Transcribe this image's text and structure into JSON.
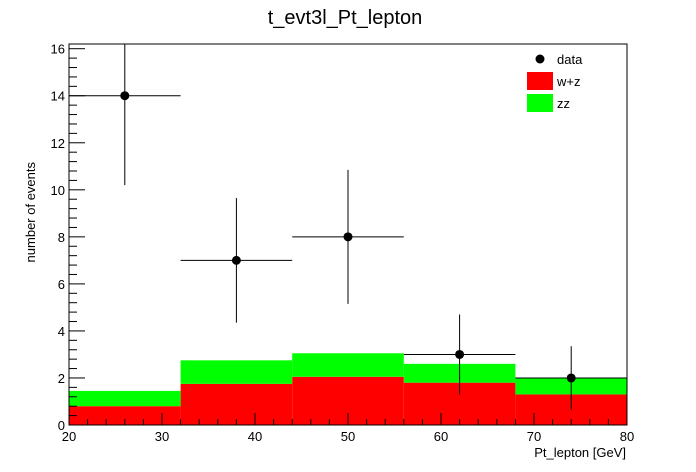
{
  "chart_data": {
    "type": "bar",
    "title": "t_evt3l_Pt_lepton",
    "xlabel": "Pt_lepton [GeV]",
    "ylabel": "number of events",
    "xlim": [
      20,
      80
    ],
    "ylim": [
      0,
      16.2
    ],
    "stacked": true,
    "bin_edges": [
      20,
      32,
      44,
      56,
      68,
      80
    ],
    "series": [
      {
        "name": "w+z",
        "color": "#ff0000",
        "values": [
          0.8,
          1.75,
          2.05,
          1.8,
          1.3
        ]
      },
      {
        "name": "zz",
        "color": "#00ff00",
        "values": [
          0.65,
          1.0,
          1.0,
          0.8,
          0.7
        ]
      }
    ],
    "data_points": {
      "name": "data",
      "color": "#000000",
      "x": [
        26,
        38,
        50,
        62,
        74
      ],
      "y": [
        14,
        7,
        8,
        3,
        2
      ],
      "x_err": [
        6,
        6,
        6,
        6,
        6
      ],
      "y_err_low": [
        3.8,
        2.65,
        2.85,
        1.7,
        1.35
      ],
      "y_err_high": [
        3.8,
        2.65,
        2.85,
        1.7,
        1.35
      ]
    },
    "x_ticks": [
      20,
      30,
      40,
      50,
      60,
      70,
      80
    ],
    "y_ticks": [
      0,
      2,
      4,
      6,
      8,
      10,
      12,
      14,
      16
    ],
    "legend_position": "top-right",
    "legend": [
      {
        "label": "data",
        "kind": "marker",
        "color": "#000000"
      },
      {
        "label": "w+z",
        "kind": "box",
        "color": "#ff0000"
      },
      {
        "label": "zz",
        "kind": "box",
        "color": "#00ff00"
      }
    ],
    "grid": false
  }
}
